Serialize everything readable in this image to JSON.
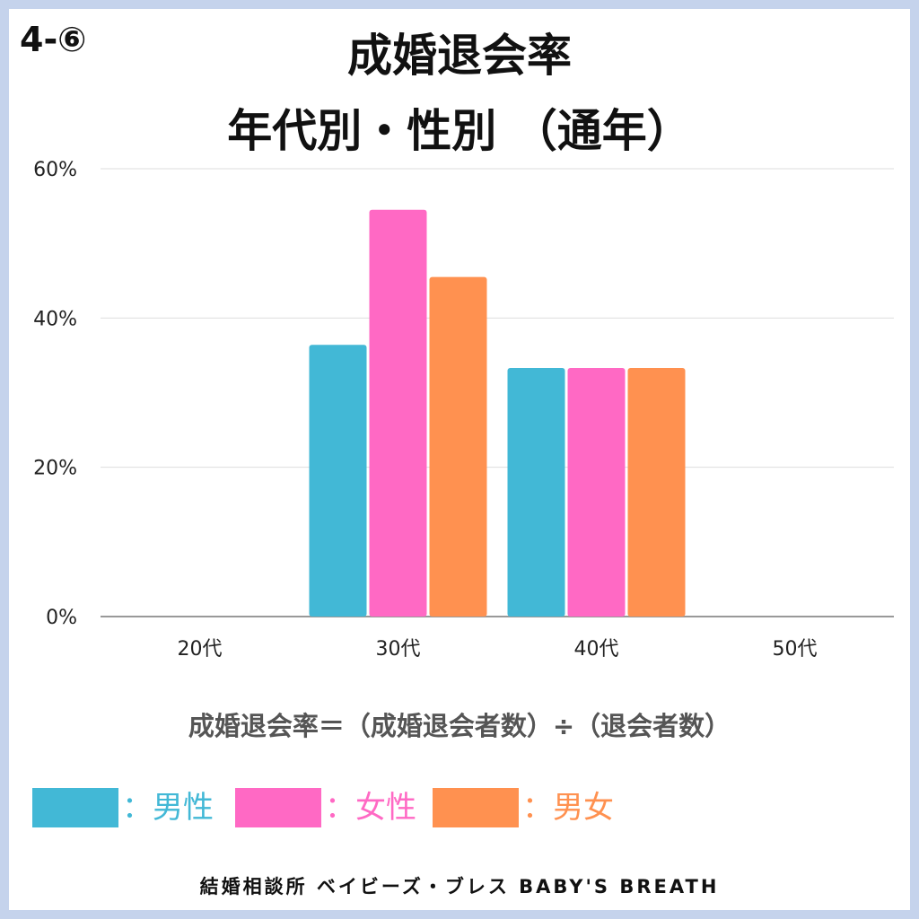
{
  "badge": "4-⑥",
  "title_line1": "成婚退会率",
  "title_line2": "年代別・性別 （通年）",
  "chart_data": {
    "type": "bar",
    "categories": [
      "20代",
      "30代",
      "40代",
      "50代"
    ],
    "series": [
      {
        "name": "：男性",
        "color": "#42b8d6",
        "values": [
          0,
          36.4,
          33.3,
          0
        ]
      },
      {
        "name": "：女性",
        "color": "#ff69c4",
        "values": [
          0,
          54.5,
          33.3,
          0
        ]
      },
      {
        "name": "：男女",
        "color": "#ff9150",
        "values": [
          0,
          45.5,
          33.3,
          0
        ]
      }
    ],
    "yticks": [
      "0%",
      "20%",
      "40%",
      "60%"
    ],
    "ylim": [
      0,
      60
    ],
    "grid": true
  },
  "formula": "成婚退会率＝（成婚退会者数）÷（退会者数）",
  "legend": [
    {
      "label": "：男性",
      "color": "#42b8d6"
    },
    {
      "label": "：女性",
      "color": "#ff69c4"
    },
    {
      "label": "：男女",
      "color": "#ff9150"
    }
  ],
  "footer": "結婚相談所 ベイビーズ・ブレス BABY'S BREATH"
}
